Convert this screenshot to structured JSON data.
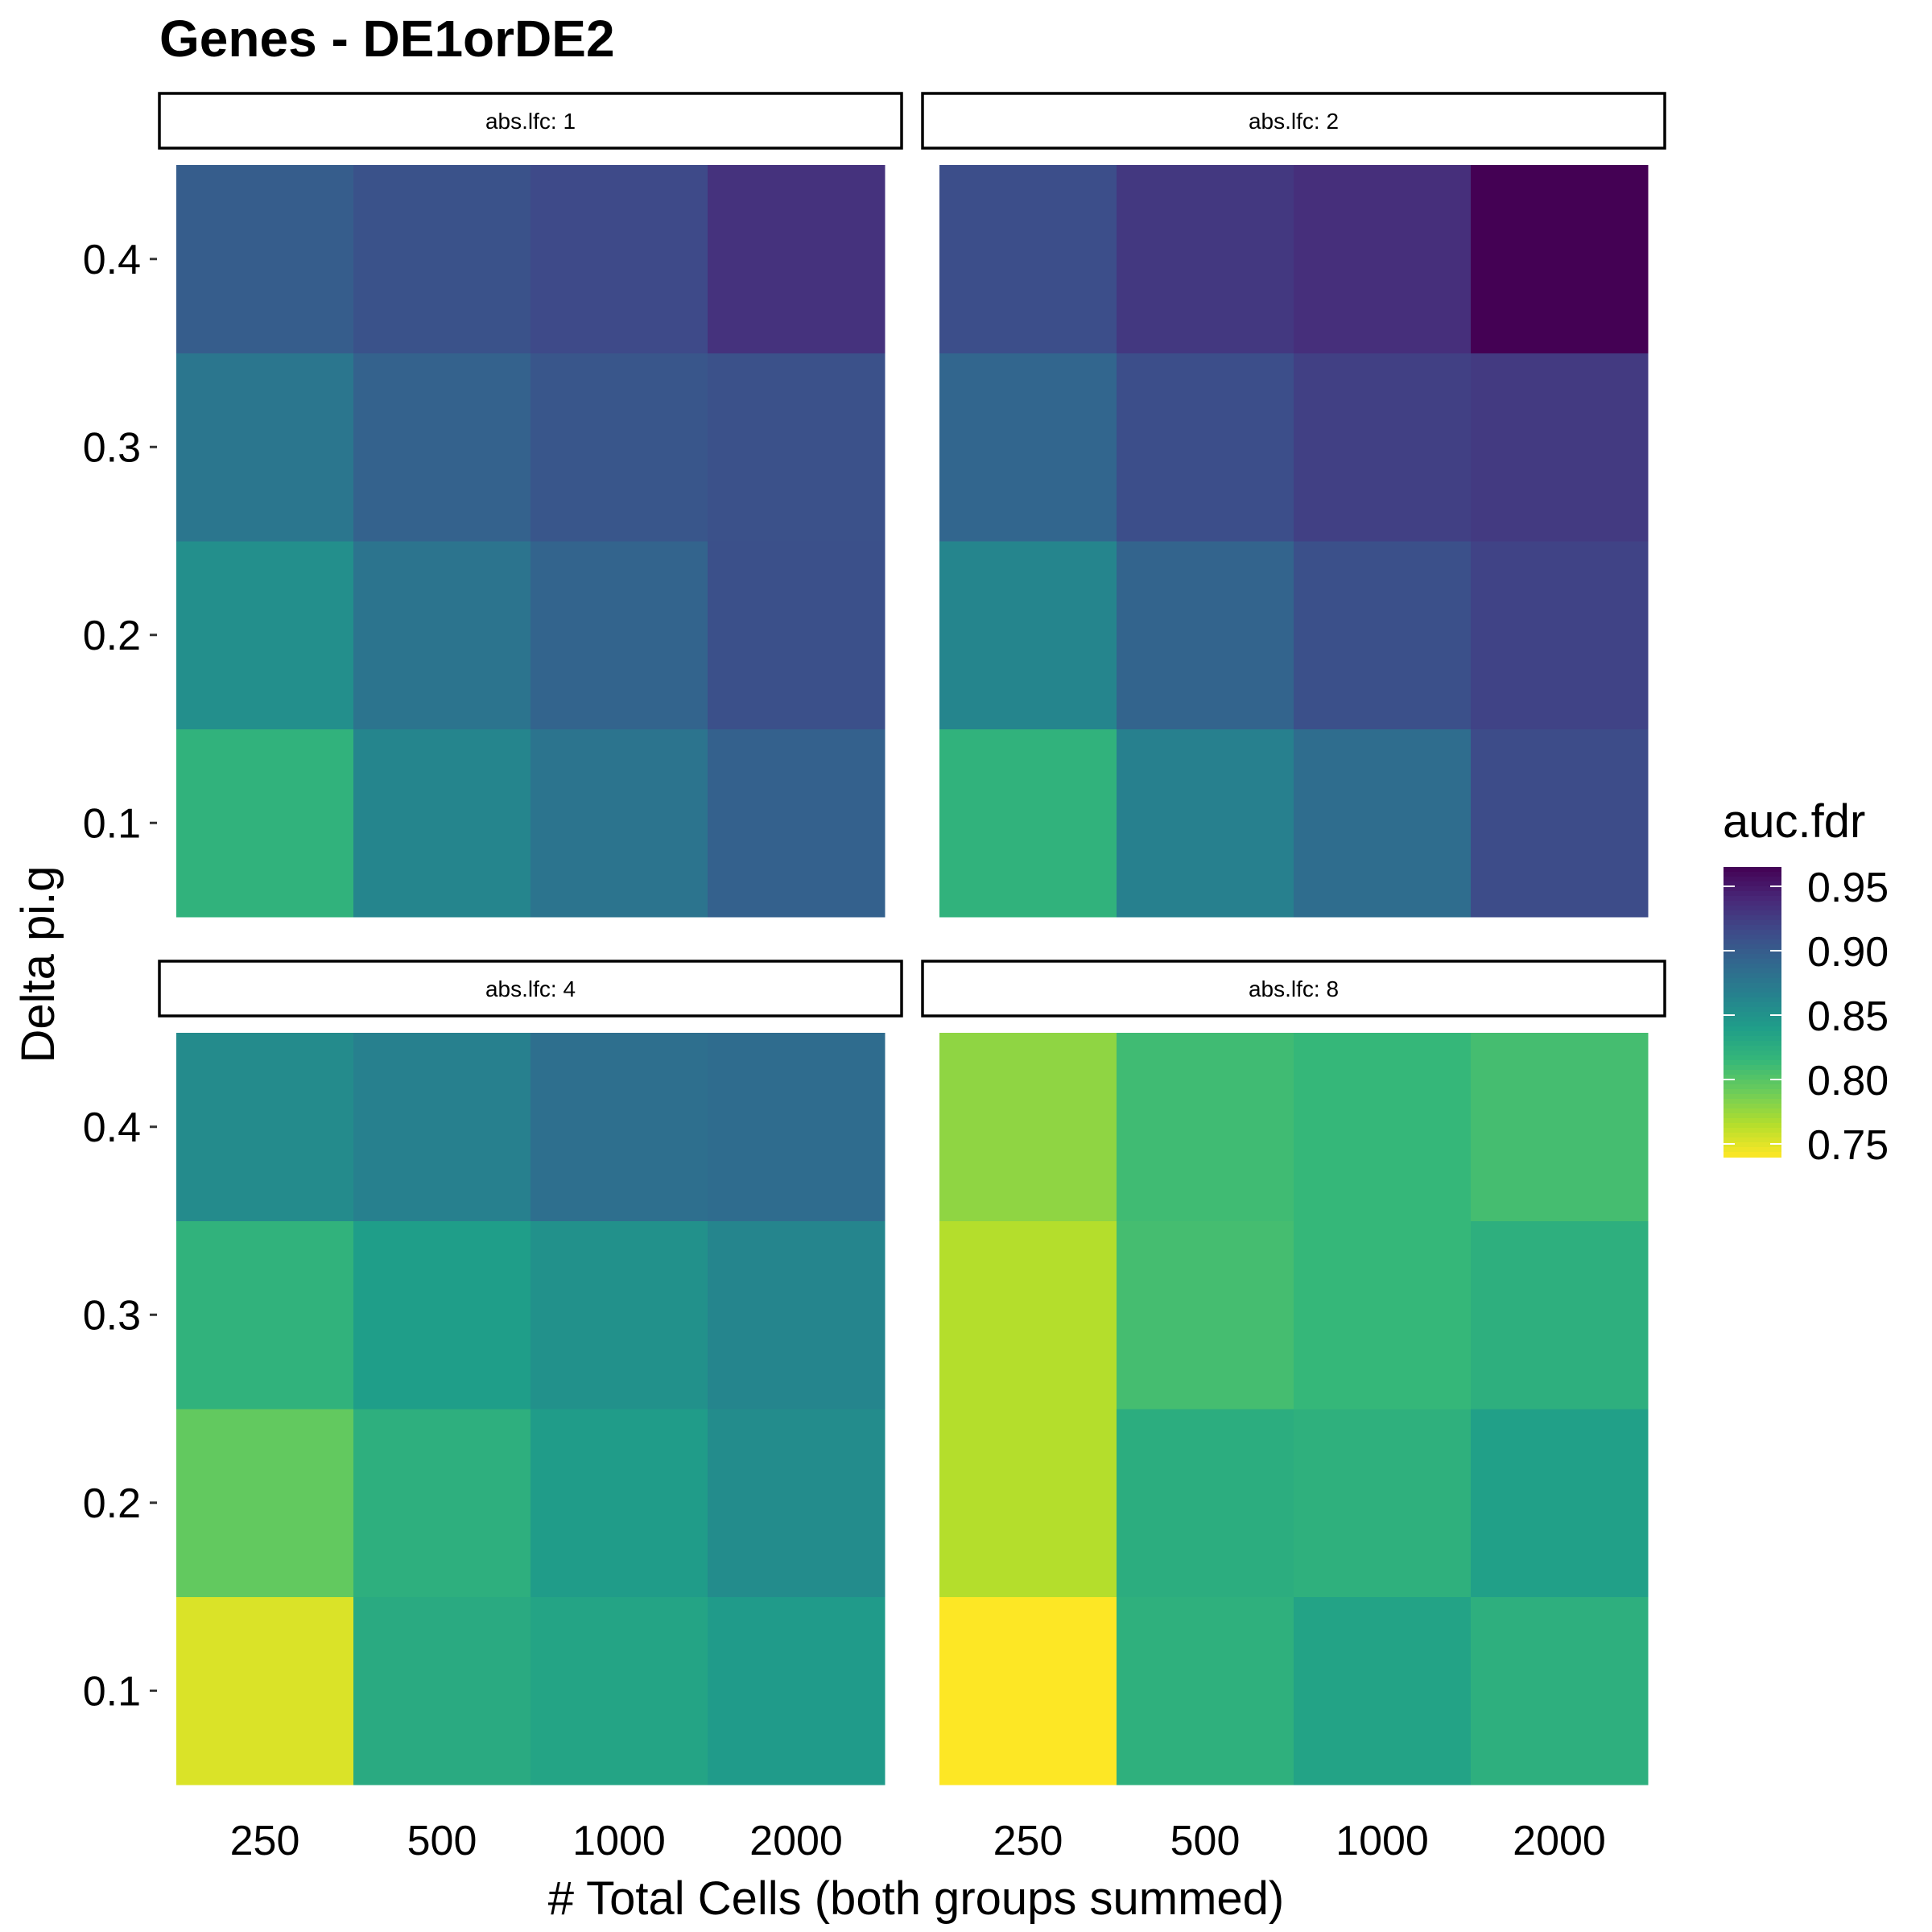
{
  "chart_data": {
    "type": "heatmap",
    "title": "Genes - DE1orDE2",
    "xlabel": "# Total Cells (both groups summed)",
    "ylabel": "Delta pi.g",
    "x_categories": [
      "250",
      "500",
      "1000",
      "2000"
    ],
    "y_categories": [
      "0.1",
      "0.2",
      "0.3",
      "0.4"
    ],
    "facet_label_prefix": "abs.lfc: ",
    "panels": [
      {
        "label": "abs.lfc: 1",
        "values": [
          [
            0.82,
            0.853,
            0.877,
            0.899
          ],
          [
            0.862,
            0.878,
            0.895,
            0.908
          ],
          [
            0.878,
            0.893,
            0.905,
            0.915
          ],
          [
            0.896,
            0.91,
            0.909,
            0.933
          ]
        ]
      },
      {
        "label": "abs.lfc: 2",
        "values": [
          [
            0.82,
            0.862,
            0.892,
            0.912
          ],
          [
            0.867,
            0.893,
            0.912,
            0.928
          ],
          [
            0.885,
            0.91,
            0.922,
            0.935
          ],
          [
            0.913,
            0.92,
            0.927,
            0.965
          ]
        ]
      },
      {
        "label": "abs.lfc: 4",
        "values": [
          [
            0.752,
            0.795,
            0.82,
            0.857
          ],
          [
            0.828,
            0.823,
            0.84,
            0.867
          ],
          [
            0.834,
            0.842,
            0.852,
            0.883
          ],
          [
            0.843,
            0.856,
            0.862,
            0.886
          ]
        ]
      },
      {
        "label": "abs.lfc: 8",
        "values": [
          [
            0.74,
            0.765,
            0.765,
            0.778
          ],
          [
            0.822,
            0.825,
            0.808,
            0.81
          ],
          [
            0.835,
            0.822,
            0.815,
            0.815
          ],
          [
            0.823,
            0.838,
            0.823,
            0.808
          ]
        ]
      }
    ],
    "legend": {
      "title": "auc.fdr",
      "ticks": [
        "0.95",
        "0.90",
        "0.85",
        "0.80",
        "0.75"
      ],
      "range": [
        0.74,
        0.965
      ]
    },
    "colormap": "viridis (reversed)",
    "grid": false
  }
}
